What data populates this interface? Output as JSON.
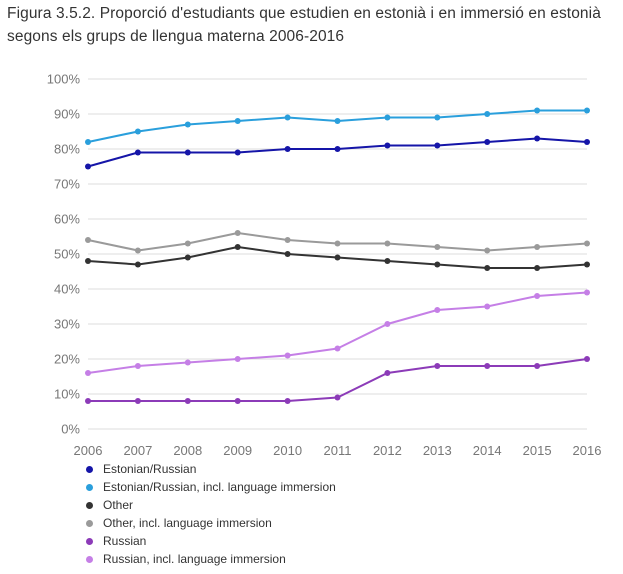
{
  "figure": {
    "caption": "Figura 3.5.2. Proporció d'estudiants que estudien en estonià i en immersió en estonià segons els grups de llengua materna 2006-2016"
  },
  "chart_data": {
    "type": "line",
    "title": "",
    "xlabel": "",
    "ylabel": "",
    "categories": [
      "2006",
      "2007",
      "2008",
      "2009",
      "2010",
      "2011",
      "2012",
      "2013",
      "2014",
      "2015",
      "2016"
    ],
    "ylim": [
      0,
      100
    ],
    "y_ticks": [
      "0%",
      "10%",
      "20%",
      "30%",
      "40%",
      "50%",
      "60%",
      "70%",
      "80%",
      "90%",
      "100%"
    ],
    "grid": true,
    "legend_position": "bottom",
    "series": [
      {
        "name": "Estonian/Russian",
        "color": "#1515a8",
        "values": [
          75,
          79,
          79,
          79,
          80,
          80,
          81,
          81,
          82,
          83,
          82
        ]
      },
      {
        "name": "Estonian/Russian, incl. language immersion",
        "color": "#2a9fdc",
        "values": [
          82,
          85,
          87,
          88,
          89,
          88,
          89,
          89,
          90,
          91,
          91
        ]
      },
      {
        "name": "Other",
        "color": "#333333",
        "values": [
          48,
          47,
          49,
          52,
          50,
          49,
          48,
          47,
          46,
          46,
          47
        ]
      },
      {
        "name": "Other, incl. language immersion",
        "color": "#9a9a9a",
        "values": [
          54,
          51,
          53,
          56,
          54,
          53,
          53,
          52,
          51,
          52,
          53
        ]
      },
      {
        "name": "Russian",
        "color": "#8c3bb8",
        "values": [
          8,
          8,
          8,
          8,
          8,
          9,
          16,
          18,
          18,
          18,
          20
        ]
      },
      {
        "name": "Russian, incl. language immersion",
        "color": "#c57fe6",
        "values": [
          16,
          18,
          19,
          20,
          21,
          23,
          30,
          34,
          35,
          38,
          39
        ]
      }
    ]
  }
}
